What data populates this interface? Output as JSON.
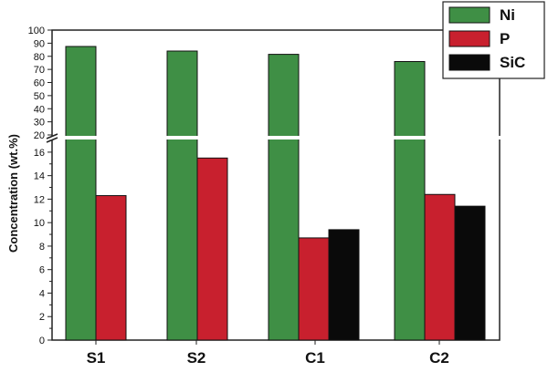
{
  "chart_data": {
    "type": "bar",
    "title": "",
    "xlabel": "",
    "ylabel": "Concentration (wt.%)",
    "categories": [
      "S1",
      "S2",
      "C1",
      "C2"
    ],
    "series": [
      {
        "name": "Ni",
        "color": "#3f8f45",
        "values": [
          87.5,
          84,
          81.5,
          76
        ]
      },
      {
        "name": "P",
        "color": "#c8202e",
        "values": [
          12.3,
          15.5,
          8.7,
          12.4
        ]
      },
      {
        "name": "SiC",
        "color": "#0a0a0a",
        "values": [
          null,
          null,
          9.4,
          11.4
        ]
      }
    ],
    "axis_break": {
      "lower_range": [
        0,
        17
      ],
      "upper_range": [
        20,
        100
      ]
    },
    "lower_ticks": [
      "0",
      "2",
      "4",
      "6",
      "8",
      "10",
      "12",
      "14",
      "16"
    ],
    "upper_ticks": [
      "20",
      "30",
      "40",
      "50",
      "60",
      "70",
      "80",
      "90",
      "100"
    ],
    "legend_position": "top-right",
    "grid": false
  }
}
